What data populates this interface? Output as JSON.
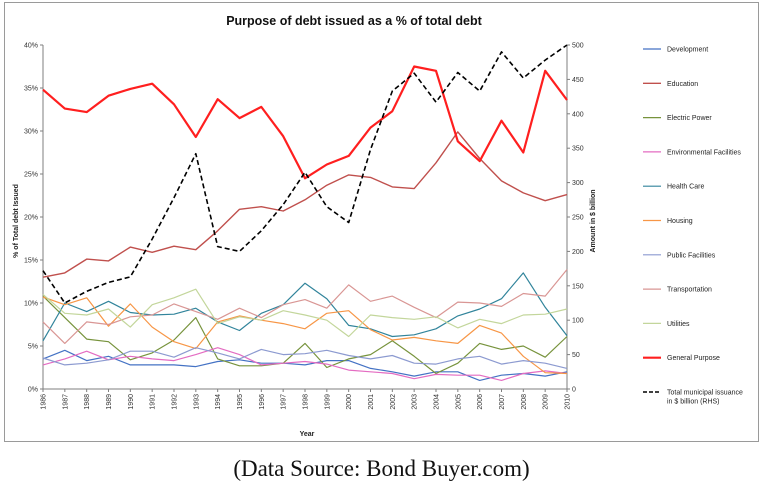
{
  "chart_data": {
    "type": "line",
    "title": "Purpose of debt issued as a % of total debt",
    "xlabel": "Year",
    "ylabel": "% of Total debt Issued",
    "y2label": "Amount in $ billion",
    "categories": [
      "1986",
      "1987",
      "1988",
      "1989",
      "1990",
      "1991",
      "1992",
      "1993",
      "1994",
      "1995",
      "1996",
      "1997",
      "1998",
      "1999",
      "2000",
      "2001",
      "2002",
      "2003",
      "2004",
      "2005",
      "2006",
      "2007",
      "2008",
      "2009",
      "2010"
    ],
    "ylim": [
      0,
      40
    ],
    "yticks": [
      "0%",
      "5%",
      "10%",
      "15%",
      "20%",
      "25%",
      "30%",
      "35%",
      "40%"
    ],
    "y2lim": [
      0,
      500
    ],
    "y2ticks": [
      "0",
      "50",
      "100",
      "150",
      "200",
      "250",
      "300",
      "350",
      "400",
      "450",
      "500"
    ],
    "grid": false,
    "legend_position": "right",
    "series": [
      {
        "name": "Development",
        "color": "#4472c4",
        "axis": "left",
        "dashed": false,
        "width": 1.2,
        "values": [
          3.5,
          4.5,
          3.3,
          3.8,
          2.8,
          2.8,
          2.8,
          2.6,
          3.2,
          3.4,
          3.0,
          3.0,
          2.8,
          3.3,
          3.3,
          2.4,
          2.0,
          1.5,
          2.0,
          2.0,
          1.0,
          1.6,
          1.8,
          1.5,
          2.0
        ]
      },
      {
        "name": "Education",
        "color": "#c0504d",
        "axis": "left",
        "dashed": false,
        "width": 1.4,
        "values": [
          13.0,
          13.5,
          15.1,
          14.9,
          16.5,
          15.9,
          16.6,
          16.2,
          18.4,
          20.9,
          21.2,
          20.7,
          22.0,
          23.7,
          24.9,
          24.6,
          23.5,
          23.3,
          26.3,
          29.9,
          26.8,
          24.2,
          22.8,
          21.9,
          22.6
        ]
      },
      {
        "name": "Electric Power",
        "color": "#77933c",
        "axis": "left",
        "dashed": false,
        "width": 1.2,
        "values": [
          10.8,
          8.3,
          5.8,
          5.5,
          3.4,
          4.2,
          5.7,
          8.3,
          3.5,
          2.7,
          2.7,
          3.0,
          5.3,
          2.5,
          3.5,
          4.0,
          5.6,
          3.8,
          1.8,
          3.0,
          5.3,
          4.6,
          5.0,
          3.7,
          6.1
        ]
      },
      {
        "name": "Environmental Facilities",
        "color": "#e46cc2",
        "axis": "left",
        "dashed": false,
        "width": 1.2,
        "values": [
          2.8,
          3.5,
          4.4,
          3.4,
          3.8,
          3.5,
          3.3,
          4.0,
          4.8,
          4.0,
          2.8,
          3.0,
          3.2,
          2.9,
          2.2,
          2.0,
          1.8,
          1.2,
          1.7,
          1.6,
          1.6,
          1.0,
          1.8,
          2.1,
          1.8
        ]
      },
      {
        "name": "Health Care",
        "color": "#31849b",
        "axis": "left",
        "dashed": false,
        "width": 1.2,
        "values": [
          5.6,
          10.0,
          9.0,
          10.2,
          8.9,
          8.6,
          8.7,
          9.4,
          7.8,
          6.8,
          8.8,
          9.8,
          12.3,
          10.5,
          7.4,
          7.0,
          6.1,
          6.3,
          7.0,
          8.5,
          9.3,
          10.5,
          13.5,
          9.5,
          6.2
        ]
      },
      {
        "name": "Housing",
        "color": "#f79646",
        "axis": "left",
        "dashed": false,
        "width": 1.2,
        "values": [
          10.7,
          9.8,
          10.6,
          7.3,
          9.9,
          7.2,
          5.5,
          4.7,
          7.8,
          8.5,
          8.0,
          7.6,
          7.0,
          8.8,
          9.1,
          6.9,
          5.7,
          6.0,
          5.6,
          5.3,
          7.4,
          6.5,
          3.8,
          1.9,
          1.8
        ]
      },
      {
        "name": "Public Facilities",
        "color": "#8c9ad0",
        "axis": "left",
        "dashed": false,
        "width": 1.2,
        "values": [
          3.6,
          2.8,
          3.0,
          3.4,
          4.4,
          4.4,
          3.7,
          4.8,
          4.2,
          3.5,
          4.6,
          4.0,
          4.1,
          4.5,
          3.9,
          3.5,
          3.9,
          3.0,
          2.9,
          3.5,
          3.8,
          2.9,
          3.3,
          3.0,
          2.4
        ]
      },
      {
        "name": "Transportation",
        "color": "#d99694",
        "axis": "left",
        "dashed": false,
        "width": 1.2,
        "values": [
          7.8,
          5.3,
          7.8,
          7.5,
          8.4,
          8.6,
          9.9,
          9.0,
          8.1,
          9.4,
          8.3,
          9.8,
          10.4,
          9.4,
          12.1,
          10.2,
          10.8,
          9.5,
          8.3,
          10.1,
          10.0,
          9.6,
          11.1,
          10.8,
          13.9
        ]
      },
      {
        "name": "Utilities",
        "color": "#c3d69b",
        "axis": "left",
        "dashed": false,
        "width": 1.2,
        "values": [
          11.0,
          8.8,
          8.6,
          9.3,
          7.2,
          9.8,
          10.6,
          11.6,
          7.6,
          8.4,
          8.0,
          9.1,
          8.6,
          8.0,
          6.1,
          8.6,
          8.3,
          8.1,
          8.4,
          7.1,
          8.1,
          7.6,
          8.6,
          8.7,
          9.3
        ]
      },
      {
        "name": "General Purpose",
        "color": "#ff1f1f",
        "axis": "left",
        "dashed": false,
        "width": 2.2,
        "values": [
          34.8,
          32.6,
          32.2,
          34.1,
          34.9,
          35.5,
          33.1,
          29.3,
          33.7,
          31.5,
          32.8,
          29.4,
          24.5,
          26.1,
          27.1,
          30.4,
          32.3,
          37.5,
          37.0,
          28.8,
          26.5,
          31.2,
          27.5,
          37.0,
          33.6
        ]
      },
      {
        "name": "Total municipal issuance in $ billion (RHS)",
        "color": "#000000",
        "axis": "right",
        "dashed": true,
        "width": 1.6,
        "values": [
          172,
          125,
          142,
          155,
          163,
          218,
          278,
          342,
          207,
          200,
          230,
          268,
          315,
          265,
          242,
          348,
          433,
          459,
          417,
          460,
          433,
          490,
          452,
          478,
          500
        ]
      }
    ]
  },
  "source_note": "(Data Source: Bond Buyer.com)"
}
